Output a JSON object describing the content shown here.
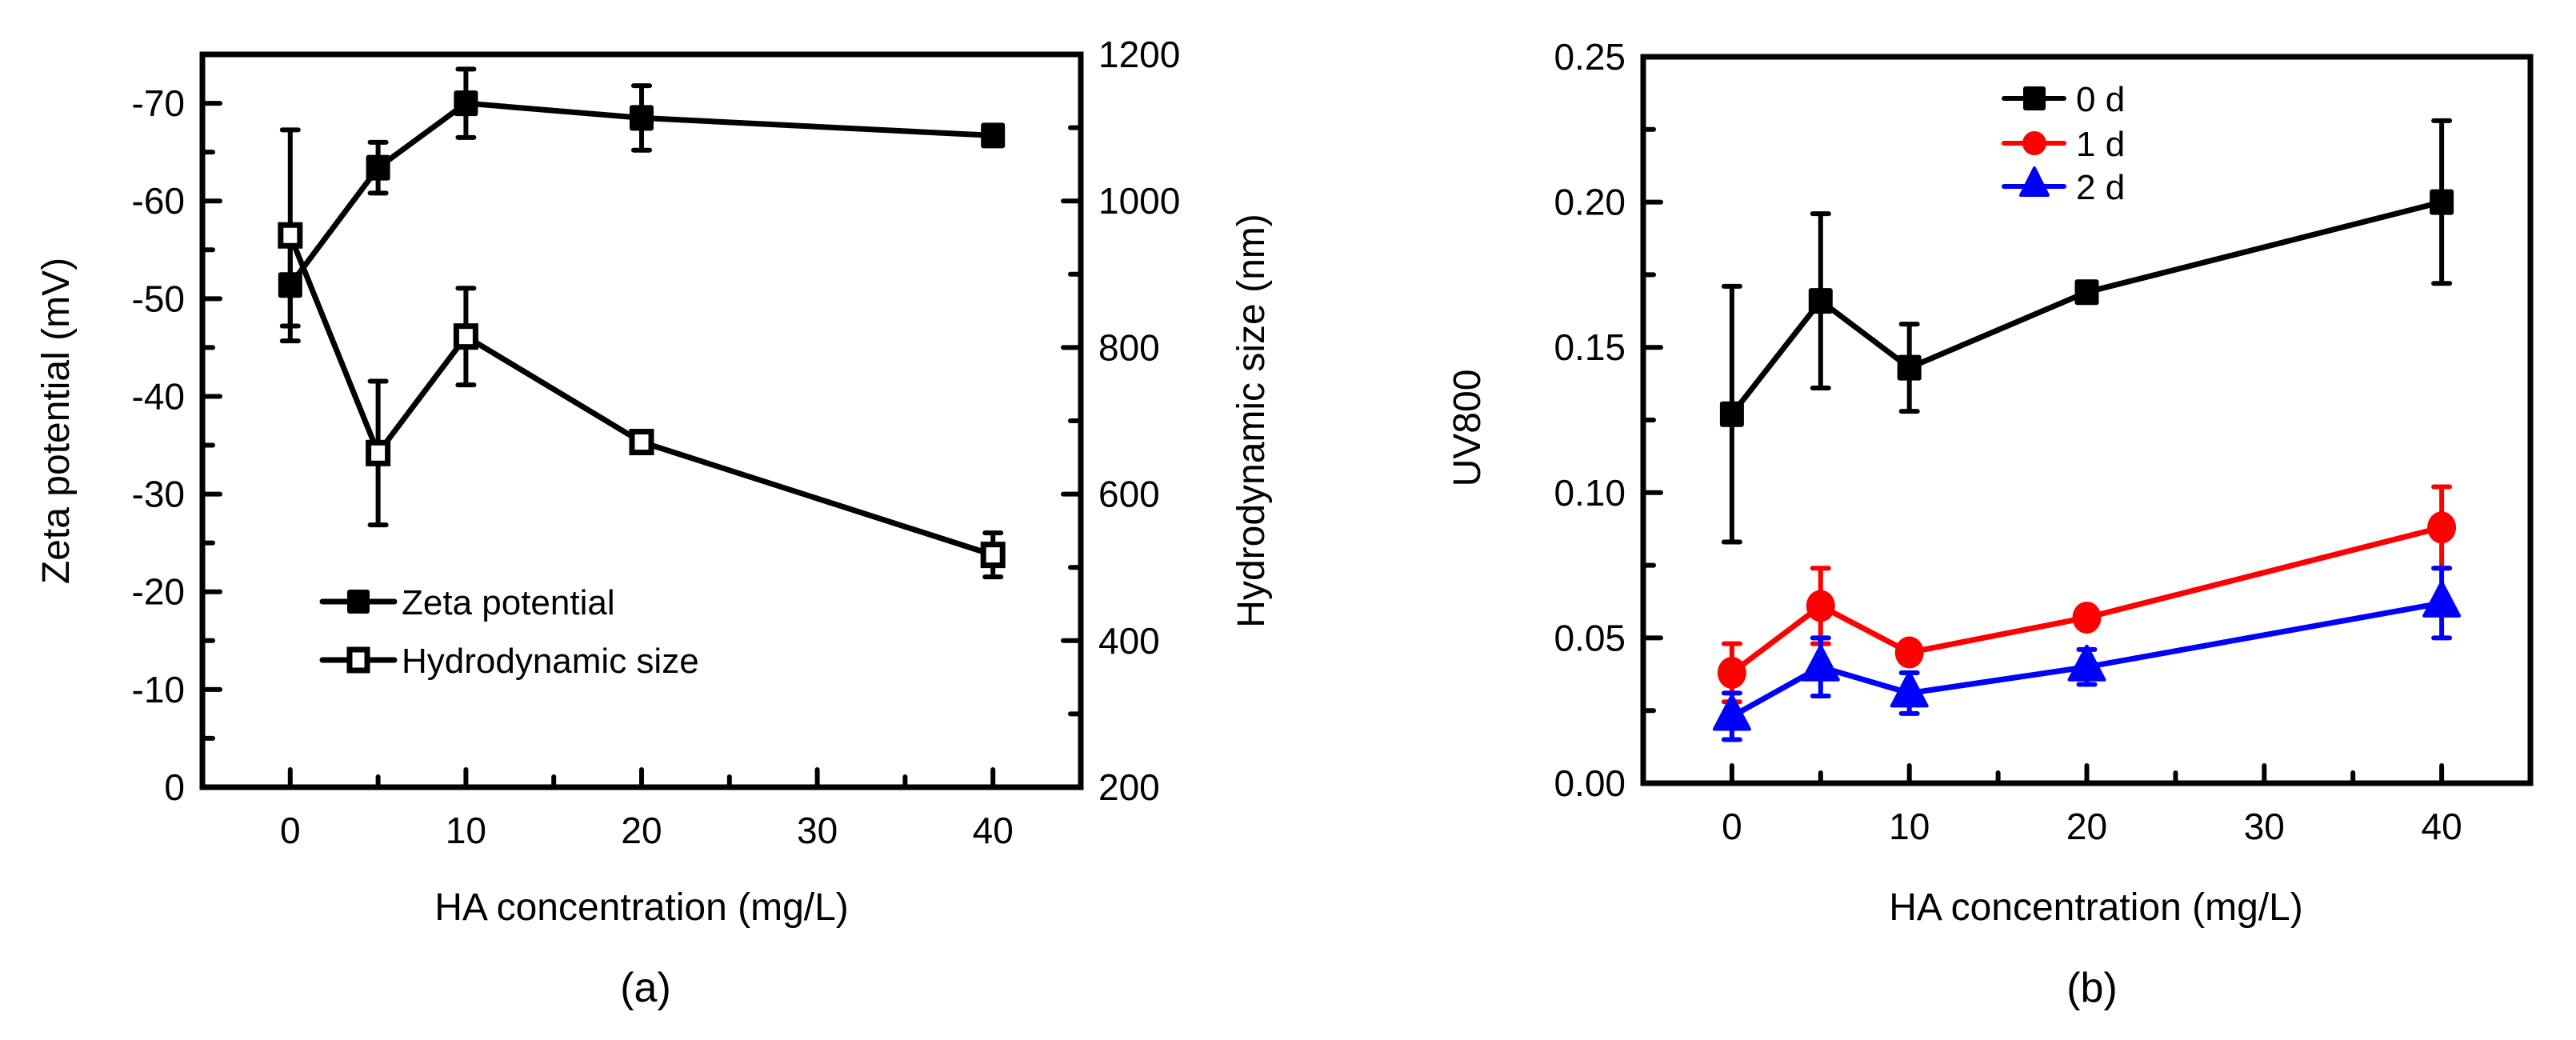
{
  "chart_data": [
    {
      "id": "a",
      "type": "line",
      "caption": "(a)",
      "xlabel": "HA concentration (mg/L)",
      "ylabel": "Zeta potential (mV)",
      "ylabel_right": "Hydrodynamic size (nm)",
      "xlim": [
        -5,
        45
      ],
      "ylim": [
        0,
        -75
      ],
      "ylim_right": [
        200,
        1200
      ],
      "x_ticks": [
        0,
        10,
        20,
        30,
        40
      ],
      "x_tick_labels": [
        "0",
        "10",
        "20",
        "30",
        "40"
      ],
      "x_minor_ticks": [
        5,
        15,
        25,
        35
      ],
      "y_ticks": [
        0,
        -10,
        -20,
        -30,
        -40,
        -50,
        -60,
        -70
      ],
      "y_tick_labels": [
        "0",
        "-10",
        "-20",
        "-30",
        "-40",
        "-50",
        "-60",
        "-70"
      ],
      "y_minor_ticks": [
        -5,
        -15,
        -25,
        -35,
        -45,
        -55,
        -65
      ],
      "y_right_ticks": [
        200,
        400,
        600,
        800,
        1000,
        1200
      ],
      "y_right_tick_labels": [
        "200",
        "400",
        "600",
        "800",
        "1000",
        "1200"
      ],
      "y_right_minor_ticks": [
        300,
        500,
        700,
        900,
        1100
      ],
      "grid": false,
      "legend_position": "lower-left",
      "x": [
        0,
        5,
        10,
        20,
        40
      ],
      "series": [
        {
          "name": "Zeta potential",
          "axis": "left",
          "marker": "filled-square",
          "color": "#000000",
          "values": [
            -51.4,
            -63.4,
            -70.0,
            -68.5,
            -66.7
          ],
          "errors": [
            4.2,
            2.6,
            3.5,
            3.3,
            0.6
          ]
        },
        {
          "name": "Hydrodynamic size",
          "axis": "right",
          "marker": "open-square",
          "color": "#000000",
          "values": [
            953,
            656,
            815,
            671,
            517
          ],
          "errors": [
            144,
            98,
            66,
            12,
            30
          ]
        }
      ]
    },
    {
      "id": "b",
      "type": "line",
      "caption": "(b)",
      "xlabel": "HA concentration (mg/L)",
      "ylabel": "UV800",
      "xlim": [
        -5,
        45
      ],
      "ylim": [
        0,
        0.25
      ],
      "x_ticks": [
        0,
        10,
        20,
        30,
        40
      ],
      "x_tick_labels": [
        "0",
        "10",
        "20",
        "30",
        "40"
      ],
      "x_minor_ticks": [
        5,
        15,
        25,
        35
      ],
      "y_ticks": [
        0,
        0.05,
        0.1,
        0.15,
        0.2,
        0.25
      ],
      "y_tick_labels": [
        "0.00",
        "0.05",
        "0.10",
        "0.15",
        "0.20",
        "0.25"
      ],
      "y_minor_ticks": [
        0.025,
        0.075,
        0.125,
        0.175,
        0.225
      ],
      "grid": false,
      "legend_position": "top-center",
      "x": [
        0,
        5,
        10,
        20,
        40
      ],
      "series": [
        {
          "name": "0 d",
          "marker": "square",
          "color": "#000000",
          "values": [
            0.127,
            0.166,
            0.143,
            0.169,
            0.2
          ],
          "errors": [
            0.044,
            0.03,
            0.015,
            0.003,
            0.028
          ]
        },
        {
          "name": "1 d",
          "marker": "circle",
          "color": "#ff0000",
          "values": [
            0.038,
            0.061,
            0.045,
            0.057,
            0.088
          ],
          "errors": [
            0.01,
            0.013,
            0.003,
            0.003,
            0.014
          ]
        },
        {
          "name": "2 d",
          "marker": "triangle",
          "color": "#0000ff",
          "values": [
            0.023,
            0.04,
            0.031,
            0.04,
            0.062
          ],
          "errors": [
            0.008,
            0.01,
            0.007,
            0.006,
            0.012
          ]
        }
      ]
    }
  ]
}
